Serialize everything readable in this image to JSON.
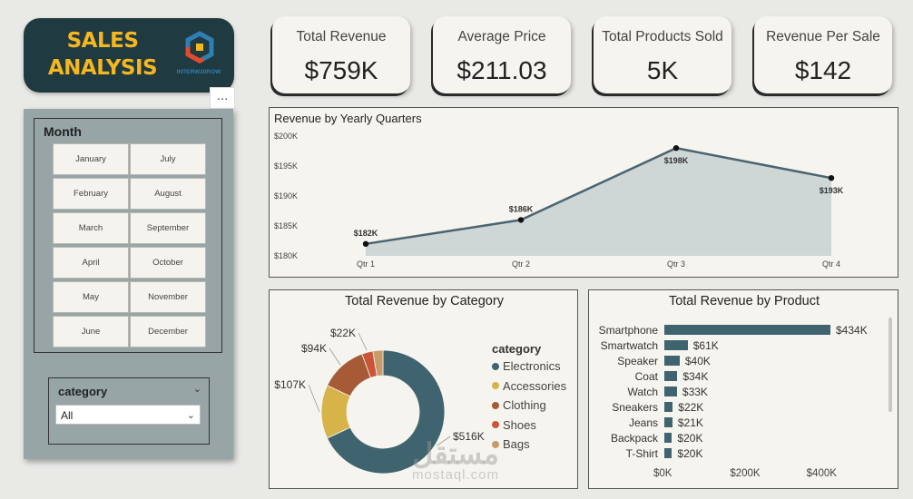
{
  "header": {
    "title_line1": "SALES",
    "title_line2": "ANALYSIS",
    "logo_caption": "INTERW20ROW"
  },
  "more_options": "...",
  "month_slicer": {
    "title": "Month",
    "options": [
      "January",
      "July",
      "February",
      "August",
      "March",
      "September",
      "April",
      "October",
      "May",
      "November",
      "June",
      "December"
    ]
  },
  "category_slicer": {
    "title": "category",
    "selected": "All"
  },
  "kpis": [
    {
      "title": "Total Revenue",
      "value": "$759K"
    },
    {
      "title": "Average Price",
      "value": "$211.03"
    },
    {
      "title": "Total Products Sold",
      "value": "5K"
    },
    {
      "title": "Revenue Per Sale",
      "value": "$142"
    }
  ],
  "chart_data": [
    {
      "type": "area",
      "title": "Revenue by Yearly Quarters",
      "categories": [
        "Qtr 1",
        "Qtr 2",
        "Qtr 3",
        "Qtr 4"
      ],
      "values": [
        182,
        186,
        198,
        193
      ],
      "data_labels": [
        "$182K",
        "$186K",
        "$198K",
        "$193K"
      ],
      "yticks": [
        "$180K",
        "$185K",
        "$190K",
        "$195K",
        "$200K"
      ],
      "ylim": [
        180,
        200
      ],
      "color": "#4a6470",
      "fill": "#cfd6d6"
    },
    {
      "type": "pie",
      "title": "Total Revenue by Category",
      "legend_title": "category",
      "legend_position": "right",
      "categories": [
        "Electronics",
        "Accessories",
        "Clothing",
        "Shoes",
        "Bags"
      ],
      "values": [
        516,
        107,
        94,
        22,
        20
      ],
      "data_labels": [
        "$516K",
        "$107K",
        "$94K",
        "$22K",
        ""
      ],
      "colors": [
        "#40646f",
        "#d6b44a",
        "#a65a35",
        "#c9553a",
        "#c79b6a"
      ]
    },
    {
      "type": "bar",
      "title": "Total Revenue by Product",
      "categories": [
        "Smartphone",
        "Smartwatch",
        "Speaker",
        "Coat",
        "Watch",
        "Sneakers",
        "Jeans",
        "Backpack",
        "T-Shirt"
      ],
      "values": [
        434,
        61,
        40,
        34,
        33,
        22,
        21,
        20,
        20
      ],
      "data_labels": [
        "$434K",
        "$61K",
        "$40K",
        "$34K",
        "$33K",
        "$22K",
        "$21K",
        "$20K",
        "$20K"
      ],
      "xticks": [
        "$0K",
        "$200K",
        "$400K"
      ],
      "xlim": [
        0,
        434
      ],
      "color": "#40646f"
    }
  ],
  "watermark": {
    "line1": "مستقل",
    "line2": "mostaql.com"
  }
}
